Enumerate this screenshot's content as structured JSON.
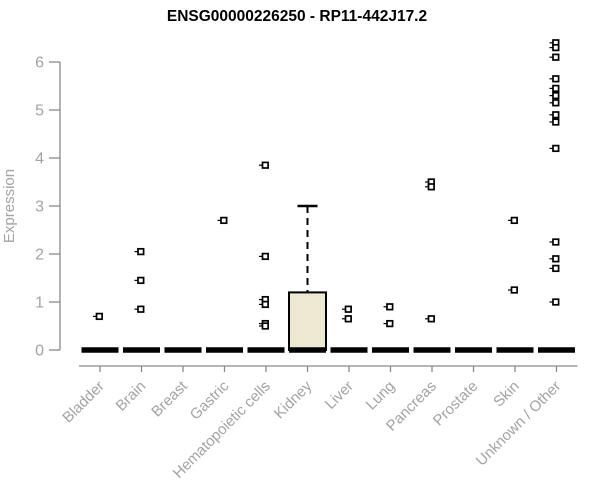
{
  "chart_data": {
    "type": "boxplot",
    "title": "ENSG00000226250 - RP11-442J17.2",
    "xlabel": "",
    "ylabel": "Expression",
    "ylim": [
      0,
      6.6
    ],
    "yticks": [
      0,
      1,
      2,
      3,
      4,
      5,
      6
    ],
    "grid": false,
    "legend": "none",
    "categories": [
      "Bladder",
      "Brain",
      "Breast",
      "Gastric",
      "Hematopoietic cells",
      "Kidney",
      "Liver",
      "Lung",
      "Pancreas",
      "Prostate",
      "Skin",
      "Unknown / Other"
    ],
    "series": [
      {
        "category": "Bladder",
        "box": {
          "q1": 0,
          "median": 0,
          "q3": 0,
          "whisker_low": 0,
          "whisker_high": 0
        },
        "outliers": [
          0.7
        ]
      },
      {
        "category": "Brain",
        "box": {
          "q1": 0,
          "median": 0,
          "q3": 0,
          "whisker_low": 0,
          "whisker_high": 0
        },
        "outliers": [
          2.05,
          1.45,
          0.85
        ]
      },
      {
        "category": "Breast",
        "box": {
          "q1": 0,
          "median": 0,
          "q3": 0,
          "whisker_low": 0,
          "whisker_high": 0
        },
        "outliers": []
      },
      {
        "category": "Gastric",
        "box": {
          "q1": 0,
          "median": 0,
          "q3": 0,
          "whisker_low": 0,
          "whisker_high": 0
        },
        "outliers": [
          2.7
        ]
      },
      {
        "category": "Hematopoietic cells",
        "box": {
          "q1": 0,
          "median": 0,
          "q3": 0,
          "whisker_low": 0,
          "whisker_high": 0
        },
        "outliers": [
          3.85,
          1.95,
          1.05,
          0.95,
          0.55,
          0.5
        ]
      },
      {
        "category": "Kidney",
        "box": {
          "q1": 0,
          "median": 0,
          "q3": 1.2,
          "whisker_low": 0,
          "whisker_high": 3.0
        },
        "outliers": []
      },
      {
        "category": "Liver",
        "box": {
          "q1": 0,
          "median": 0,
          "q3": 0,
          "whisker_low": 0,
          "whisker_high": 0
        },
        "outliers": [
          0.85,
          0.65
        ]
      },
      {
        "category": "Lung",
        "box": {
          "q1": 0,
          "median": 0,
          "q3": 0,
          "whisker_low": 0,
          "whisker_high": 0
        },
        "outliers": [
          0.9,
          0.55
        ]
      },
      {
        "category": "Pancreas",
        "box": {
          "q1": 0,
          "median": 0,
          "q3": 0,
          "whisker_low": 0,
          "whisker_high": 0
        },
        "outliers": [
          3.5,
          3.4,
          0.65
        ]
      },
      {
        "category": "Prostate",
        "box": {
          "q1": 0,
          "median": 0,
          "q3": 0,
          "whisker_low": 0,
          "whisker_high": 0
        },
        "outliers": []
      },
      {
        "category": "Skin",
        "box": {
          "q1": 0,
          "median": 0,
          "q3": 0,
          "whisker_low": 0,
          "whisker_high": 0
        },
        "outliers": [
          2.7,
          1.25
        ]
      },
      {
        "category": "Unknown / Other",
        "box": {
          "q1": 0,
          "median": 0,
          "q3": 0,
          "whisker_low": 0,
          "whisker_high": 0
        },
        "outliers": [
          6.4,
          6.3,
          6.1,
          5.65,
          5.45,
          5.3,
          5.15,
          4.9,
          4.75,
          4.2,
          2.25,
          1.9,
          1.7,
          1.0
        ]
      }
    ],
    "styles": {
      "background": "#ffffff",
      "box_fill": "#ede8d2",
      "box_stroke": "#000000",
      "median_color": "#000000",
      "whisker_color": "#000000",
      "outlier_color": "#000000",
      "outlier_fill": "#ffffff",
      "axis_color": "#8a8a8a",
      "tick_label_color": "#a3a3a3",
      "title_color": "#000000"
    }
  }
}
